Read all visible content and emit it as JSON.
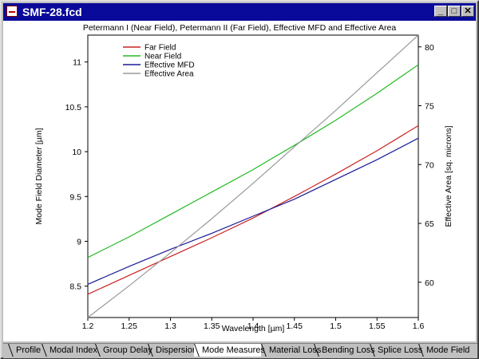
{
  "window": {
    "title": "SMF-28.fcd",
    "buttons": {
      "minimize": "_",
      "maximize": "□",
      "close": "✕"
    }
  },
  "tabs": [
    {
      "label": "Profile",
      "active": false
    },
    {
      "label": "Modal Index",
      "active": false
    },
    {
      "label": "Group Delay",
      "active": false
    },
    {
      "label": "Dispersion",
      "active": false
    },
    {
      "label": "Mode Measures",
      "active": true
    },
    {
      "label": "Material Loss",
      "active": false
    },
    {
      "label": "Bending Loss",
      "active": false
    },
    {
      "label": "Splice Loss",
      "active": false
    },
    {
      "label": "Mode Field",
      "active": false
    }
  ],
  "chart_data": {
    "type": "line",
    "title": "Petermann I (Near Field), Petermann II (Far Field), Effective MFD and Effective Area",
    "xlabel": "Wavelength [µm]",
    "ylabel": "Mode Field Diameter [µm]",
    "y2label": "Effective Area [sq. microns]",
    "xlim": [
      1.2,
      1.6
    ],
    "ylim": [
      8.15,
      11.3
    ],
    "y2lim": [
      57,
      81
    ],
    "xticks": [
      1.2,
      1.25,
      1.3,
      1.35,
      1.4,
      1.45,
      1.5,
      1.55,
      1.6
    ],
    "xtick_labels": [
      "1.2",
      "1.25",
      "1.3",
      "1.35",
      "1.4",
      "1.45",
      "1.5",
      "1.55",
      "1.6"
    ],
    "yticks": [
      8.5,
      9,
      9.5,
      10,
      10.5,
      11
    ],
    "ytick_labels": [
      "8.5",
      "9",
      "9.5",
      "10",
      "10.5",
      "11"
    ],
    "y2ticks": [
      60,
      65,
      70,
      75,
      80
    ],
    "y2tick_labels": [
      "60",
      "65",
      "70",
      "75",
      "80"
    ],
    "legend_position": "top-left",
    "x": [
      1.2,
      1.25,
      1.3,
      1.35,
      1.4,
      1.45,
      1.5,
      1.55,
      1.6
    ],
    "series": [
      {
        "name": "Far Field",
        "color": "#cc2222",
        "axis": "left",
        "values": [
          8.41,
          8.62,
          8.83,
          9.04,
          9.26,
          9.5,
          9.75,
          10.01,
          10.29
        ]
      },
      {
        "name": "Near Field",
        "color": "#22bb22",
        "axis": "left",
        "values": [
          8.82,
          9.05,
          9.3,
          9.55,
          9.8,
          10.07,
          10.35,
          10.65,
          10.97
        ]
      },
      {
        "name": "Effective MFD",
        "color": "#1a1a99",
        "axis": "left",
        "values": [
          8.52,
          8.72,
          8.91,
          9.09,
          9.28,
          9.47,
          9.69,
          9.91,
          10.15
        ]
      },
      {
        "name": "Effective Area",
        "color": "#999999",
        "axis": "right",
        "values": [
          57.0,
          59.7,
          62.5,
          65.4,
          68.4,
          71.5,
          74.6,
          77.8,
          81.0
        ]
      }
    ]
  }
}
